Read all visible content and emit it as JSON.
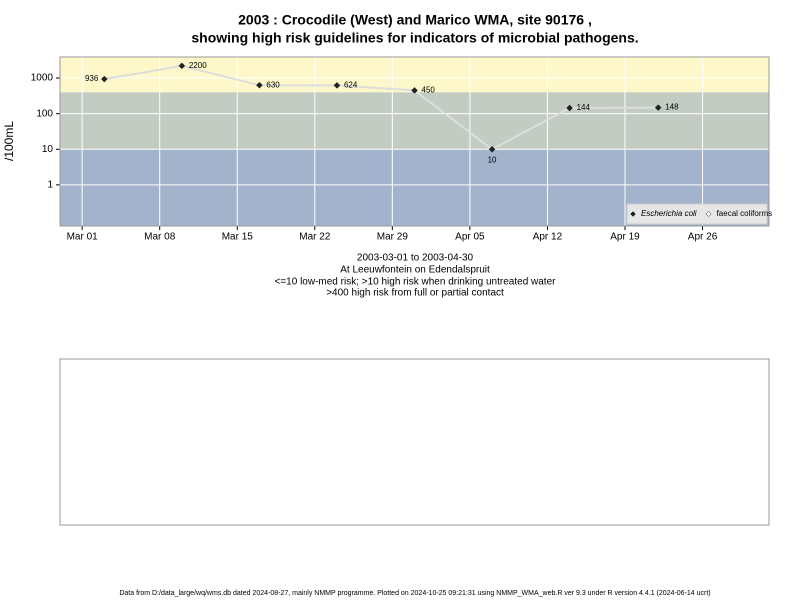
{
  "chart_data": {
    "type": "line",
    "title": [
      "2003 : Crocodile (West) and Marico WMA, site 90176 ,",
      "showing high risk guidelines for indicators of microbial pathogens."
    ],
    "subtitle": [
      "2003-03-01 to 2003-04-30",
      "At Leeuwfontein on Edendalspruit",
      "<=10 low-med risk; >10 high risk when drinking untreated water",
      ">400 high risk from full or partial contact"
    ],
    "y_label": "/100mL",
    "x": [
      "2003-03-03",
      "2003-03-10",
      "2003-03-17",
      "2003-03-24",
      "2003-03-31",
      "2003-04-07",
      "2003-04-14",
      "2003-04-22"
    ],
    "series": [
      {
        "name": "Escherichia coli",
        "color": "#dddddd",
        "marker_color": "#222222",
        "values": [
          936,
          2200,
          630,
          624,
          450,
          10,
          144,
          148
        ]
      },
      {
        "name": "faecal coliforms",
        "color": "#dddddd",
        "marker_color": "#ffffff",
        "values": [
          null,
          null,
          null,
          null,
          null,
          null,
          null,
          null
        ]
      }
    ],
    "xlim": [
      "2003-02-27",
      "2003-05-02"
    ],
    "xticks": [
      {
        "value": "2003-03-01",
        "label": "Mar 01"
      },
      {
        "value": "2003-03-08",
        "label": "Mar 08"
      },
      {
        "value": "2003-03-15",
        "label": "Mar 15"
      },
      {
        "value": "2003-03-22",
        "label": "Mar 22"
      },
      {
        "value": "2003-03-29",
        "label": "Mar 29"
      },
      {
        "value": "2003-04-05",
        "label": "Apr 05"
      },
      {
        "value": "2003-04-12",
        "label": "Apr 12"
      },
      {
        "value": "2003-04-19",
        "label": "Apr 19"
      },
      {
        "value": "2003-04-26",
        "label": "Apr 26"
      }
    ],
    "ylim": [
      0.07,
      3900
    ],
    "yticks": [
      1,
      10,
      100,
      1000
    ],
    "log_y": true,
    "grid": true,
    "thresholds": [
      10,
      400
    ],
    "band_colors": [
      "#a3b3cc",
      "#c2ccc2",
      "#fdf7c9"
    ],
    "legend": "bottom-right",
    "footer": "Data from D:/data_large/wq/wms.db dated 2024-08-27, mainly NMMP programme. Plotted on 2024-10-25 09:21:31 using NMMP_WMA_web.R ver 9.3 under R version 4.4.1 (2024-06-14 ucrt)"
  }
}
